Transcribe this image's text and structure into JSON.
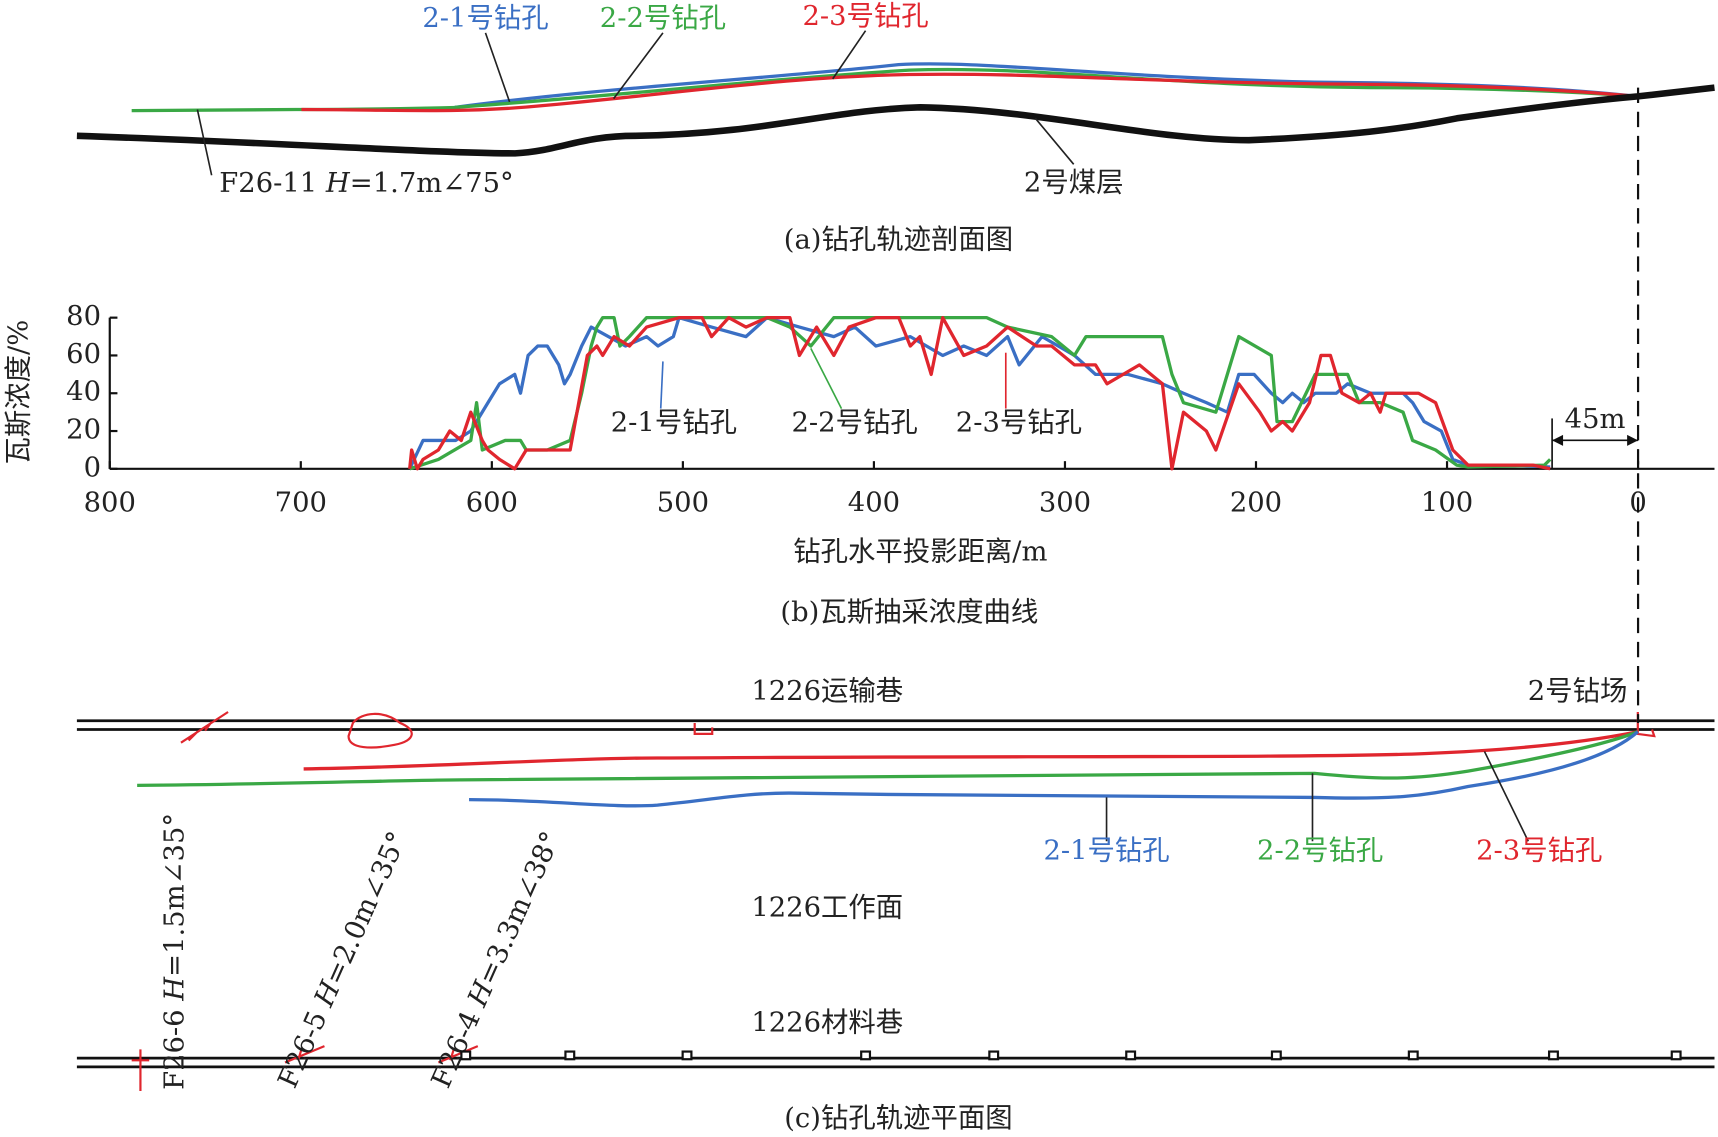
{
  "profile": {
    "labels": [
      "2-1号钻孔",
      "2-2号钻孔",
      "2-3号钻孔"
    ],
    "seam": "2号煤层",
    "fault": [
      "F26-11 ",
      "H",
      "=1.7m∠75°"
    ],
    "caption": "(a)钻孔轨迹剖面图"
  },
  "chart_data": {
    "type": "line",
    "xlabel": "钻孔水平投影距离/m",
    "ylabel": "瓦斯浓度/%",
    "caption": "(b)瓦斯抽采浓度曲线",
    "xlim": [
      800,
      -40
    ],
    "xticks": [
      800,
      700,
      600,
      500,
      400,
      300,
      200,
      100,
      0
    ],
    "ylim": [
      0,
      80
    ],
    "yticks": [
      0,
      20,
      40,
      60,
      80
    ],
    "annotation": {
      "text": "45m",
      "from": 45,
      "to": 0
    },
    "series": [
      {
        "name": "2-1号钻孔",
        "color": "#3a6fc4",
        "x": [
          643,
          636,
          619,
          611,
          602,
          596,
          588,
          585,
          581,
          576,
          571,
          565,
          562,
          559,
          553,
          548,
          539,
          530,
          519,
          513,
          505,
          502,
          485,
          467,
          456,
          439,
          421,
          410,
          399,
          381,
          364,
          353,
          341,
          330,
          324,
          312,
          295,
          284,
          267,
          249,
          238,
          226,
          215,
          209,
          201,
          192,
          186,
          181,
          175,
          169,
          158,
          152,
          140,
          123,
          118,
          112,
          103,
          97,
          89,
          66,
          46
        ],
        "values": [
          0,
          15,
          15,
          20,
          35,
          45,
          50,
          40,
          60,
          65,
          65,
          55,
          45,
          50,
          65,
          75,
          70,
          65,
          70,
          65,
          70,
          80,
          75,
          70,
          80,
          75,
          70,
          75,
          65,
          70,
          60,
          65,
          60,
          70,
          55,
          70,
          60,
          50,
          50,
          45,
          40,
          35,
          30,
          50,
          50,
          40,
          35,
          40,
          35,
          40,
          40,
          45,
          40,
          40,
          35,
          25,
          20,
          5,
          2,
          2,
          1
        ]
      },
      {
        "name": "2-2号钻孔",
        "color": "#3aa845",
        "x": [
          643,
          628,
          611,
          608,
          605,
          593,
          585,
          582,
          571,
          559,
          553,
          548,
          545,
          542,
          536,
          533,
          528,
          519,
          456,
          444,
          433,
          421,
          341,
          330,
          307,
          295,
          289,
          249,
          244,
          238,
          221,
          209,
          192,
          189,
          181,
          169,
          152,
          146,
          135,
          123,
          118,
          106,
          95,
          89,
          49,
          46
        ],
        "values": [
          0,
          5,
          15,
          35,
          10,
          15,
          15,
          10,
          10,
          15,
          40,
          65,
          75,
          80,
          80,
          65,
          70,
          80,
          80,
          75,
          65,
          80,
          80,
          75,
          70,
          60,
          70,
          70,
          50,
          35,
          30,
          70,
          60,
          25,
          25,
          50,
          50,
          35,
          35,
          30,
          15,
          10,
          2,
          1,
          2,
          5
        ]
      },
      {
        "name": "2-3号钻孔",
        "color": "#e0262e",
        "x": [
          643,
          642,
          639,
          636,
          628,
          622,
          616,
          611,
          605,
          602,
          596,
          588,
          582,
          559,
          550,
          545,
          542,
          536,
          528,
          519,
          502,
          490,
          485,
          476,
          467,
          456,
          444,
          439,
          430,
          421,
          413,
          399,
          387,
          381,
          376,
          370,
          364,
          353,
          341,
          330,
          315,
          307,
          295,
          284,
          278,
          261,
          249,
          244,
          238,
          226,
          221,
          209,
          198,
          192,
          186,
          181,
          172,
          166,
          161,
          155,
          146,
          140,
          135,
          132,
          121,
          115,
          106,
          97,
          89,
          55,
          46
        ],
        "values": [
          0,
          10,
          0,
          5,
          10,
          20,
          15,
          30,
          15,
          10,
          5,
          0,
          10,
          10,
          60,
          65,
          60,
          70,
          65,
          75,
          80,
          80,
          70,
          80,
          75,
          80,
          80,
          60,
          75,
          60,
          75,
          80,
          80,
          65,
          70,
          50,
          80,
          60,
          65,
          75,
          65,
          65,
          55,
          55,
          45,
          55,
          45,
          0,
          30,
          20,
          10,
          45,
          30,
          20,
          25,
          20,
          35,
          60,
          60,
          40,
          35,
          40,
          30,
          40,
          40,
          40,
          35,
          10,
          2,
          2,
          0
        ]
      }
    ]
  },
  "plan": {
    "roadways": [
      "1226运输巷",
      "1226材料巷"
    ],
    "site": "2号钻场",
    "face": "1226工作面",
    "labels": [
      "2-1号钻孔",
      "2-2号钻孔",
      "2-3号钻孔"
    ],
    "faults": [
      [
        "F26-6 ",
        "H",
        "=1.5m∠35°"
      ],
      [
        "F26-5 ",
        "H",
        "=2.0m∠35°"
      ],
      [
        "F26-4 ",
        "H",
        "=3.3m∠38°"
      ]
    ],
    "caption": "(c)钻孔轨迹平面图"
  }
}
